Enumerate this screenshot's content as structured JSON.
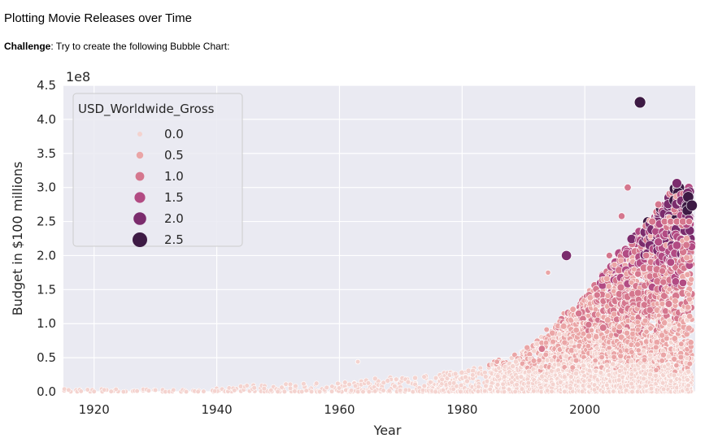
{
  "notebook": {
    "heading": "Plotting Movie Releases over Time",
    "challenge_label": "Challenge",
    "challenge_text": ": Try to create the following Bubble Chart:"
  },
  "colors": {
    "plot_bg": "#eaeaf2",
    "grid": "#ffffff",
    "palette": [
      "#f4d3cf",
      "#eaa5a6",
      "#d5778e",
      "#b24b83",
      "#7b2c6d",
      "#3d1a44"
    ]
  },
  "chart_data": {
    "type": "scatter",
    "xlabel": "Year",
    "ylabel": "Budget in $100 millions",
    "y_offset_text": "1e8",
    "xlim": [
      1915,
      2018
    ],
    "ylim": [
      0,
      450000000
    ],
    "x_ticks": [
      1920,
      1940,
      1960,
      1980,
      2000
    ],
    "y_ticks": [
      {
        "v": 0,
        "label": "0.0"
      },
      {
        "v": 50000000,
        "label": "0.5"
      },
      {
        "v": 100000000,
        "label": "1.0"
      },
      {
        "v": 150000000,
        "label": "1.5"
      },
      {
        "v": 200000000,
        "label": "2.0"
      },
      {
        "v": 250000000,
        "label": "2.5"
      },
      {
        "v": 300000000,
        "label": "3.0"
      },
      {
        "v": 350000000,
        "label": "3.5"
      },
      {
        "v": 400000000,
        "label": "4.0"
      },
      {
        "v": 450000000,
        "label": "4.5"
      }
    ],
    "grid": true,
    "legend": {
      "title": "USD_Worldwide_Gross",
      "placement": "top-left",
      "entries": [
        "0.0",
        "0.5",
        "1.0",
        "1.5",
        "2.0",
        "2.5"
      ]
    },
    "highlight_points": [
      {
        "year": 2009,
        "budget": 425000000,
        "gross": 2.7
      },
      {
        "year": 2015,
        "budget": 306000000,
        "gross": 2.05
      },
      {
        "year": 1997,
        "budget": 200000000,
        "gross": 2.2
      },
      {
        "year": 2012,
        "budget": 220000000,
        "gross": 1.5
      },
      {
        "year": 2015,
        "budget": 215000000,
        "gross": 1.6
      },
      {
        "year": 2007,
        "budget": 300000000,
        "gross": 0.96
      },
      {
        "year": 2012,
        "budget": 275000000,
        "gross": 1.08
      },
      {
        "year": 2011,
        "budget": 250000000,
        "gross": 1.12
      },
      {
        "year": 2013,
        "budget": 250000000,
        "gross": 1.0
      },
      {
        "year": 2014,
        "budget": 250000000,
        "gross": 0.96
      },
      {
        "year": 2015,
        "budget": 250000000,
        "gross": 1.1
      },
      {
        "year": 2016,
        "budget": 250000000,
        "gross": 1.15
      },
      {
        "year": 2017,
        "budget": 250000000,
        "gross": 0.88
      },
      {
        "year": 2006,
        "budget": 258000000,
        "gross": 0.89
      },
      {
        "year": 2014,
        "budget": 190000000,
        "gross": 1.4
      },
      {
        "year": 2016,
        "budget": 160000000,
        "gross": 1.3
      },
      {
        "year": 2010,
        "budget": 200000000,
        "gross": 1.0
      },
      {
        "year": 1999,
        "budget": 115000000,
        "gross": 1.0
      },
      {
        "year": 2003,
        "budget": 94000000,
        "gross": 1.1
      },
      {
        "year": 1993,
        "budget": 63000000,
        "gross": 1.0
      },
      {
        "year": 1963,
        "budget": 44000000,
        "gross": 0.07
      },
      {
        "year": 1994,
        "budget": 175000000,
        "gross": 0.26
      },
      {
        "year": 2002,
        "budget": 142000000,
        "gross": 0.82
      },
      {
        "year": 2004,
        "budget": 200000000,
        "gross": 0.78
      }
    ],
    "bulk_distribution": [
      {
        "decade": "1915-1939",
        "budget_range": [
          0,
          4000000
        ]
      },
      {
        "decade": "1940-1959",
        "budget_range": [
          0,
          8000000
        ]
      },
      {
        "decade": "1960-1979",
        "budget_range": [
          0,
          25000000
        ]
      },
      {
        "decade": "1980-1989",
        "budget_range": [
          0,
          55000000
        ]
      },
      {
        "decade": "1990-1999",
        "budget_range": [
          0,
          140000000
        ]
      },
      {
        "decade": "2000-2017",
        "budget_range": [
          0,
          300000000
        ]
      }
    ]
  }
}
